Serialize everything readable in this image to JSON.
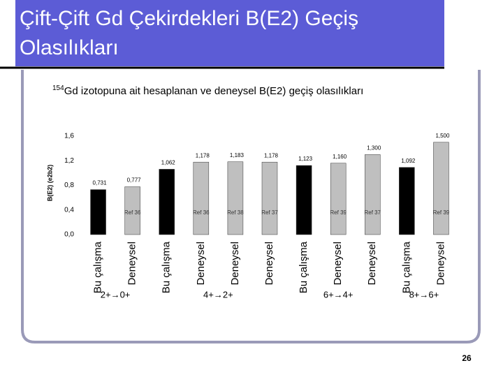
{
  "title": "Çift-Çift Gd Çekirdekleri B(E2) Geçiş Olasılıkları",
  "subtitle": {
    "superscript": "154",
    "text": "Gd izotopuna ait hesaplanan ve deneysel B(E2) geçiş olasılıkları"
  },
  "page_number": "26",
  "chart_data": {
    "type": "bar",
    "y_label": "B(E2) (e2b2)",
    "categories": [
      "Bu çalışma",
      "Deneysel",
      "Bu çalışma",
      "Deneysel",
      "Deneysel",
      "Deneysel",
      "Bu çalışma",
      "Deneysel",
      "Deneysel",
      "Bu çalışma",
      "Deneysel"
    ],
    "values": [
      0.731,
      0.777,
      1.062,
      1.178,
      1.183,
      1.178,
      1.123,
      1.16,
      1.3,
      1.092,
      1.5
    ],
    "value_labels": [
      "0,731",
      "0,777",
      "1,062",
      "1,178",
      "1,183",
      "1,178",
      "1,123",
      "1,160",
      "1,300",
      "1,092",
      "1,500"
    ],
    "bar_labels": [
      null,
      "Ref 36",
      null,
      "Ref 36",
      "Ref 38",
      "Ref 37",
      null,
      "Ref 39",
      "Ref 37",
      null,
      "Ref 39"
    ],
    "colors": [
      "#000000",
      "#bfbfbf",
      "#000000",
      "#bfbfbf",
      "#bfbfbf",
      "#bfbfbf",
      "#000000",
      "#bfbfbf",
      "#bfbfbf",
      "#000000",
      "#bfbfbf"
    ],
    "groups": [
      {
        "label": "2+→0+",
        "start": 0,
        "end": 1
      },
      {
        "label": "4+→2+",
        "start": 2,
        "end": 5
      },
      {
        "label": "6+→4+",
        "start": 6,
        "end": 8
      },
      {
        "label": "8+→6+",
        "start": 9,
        "end": 10
      }
    ],
    "ylim": [
      0,
      1.6
    ],
    "yticks": [
      {
        "value": 0,
        "label": "0,0"
      },
      {
        "value": 0.4,
        "label": "0,4"
      },
      {
        "value": 0.8,
        "label": "0,8"
      },
      {
        "value": 1.2,
        "label": "1,2"
      },
      {
        "value": 1.6,
        "label": "1,6"
      }
    ]
  }
}
